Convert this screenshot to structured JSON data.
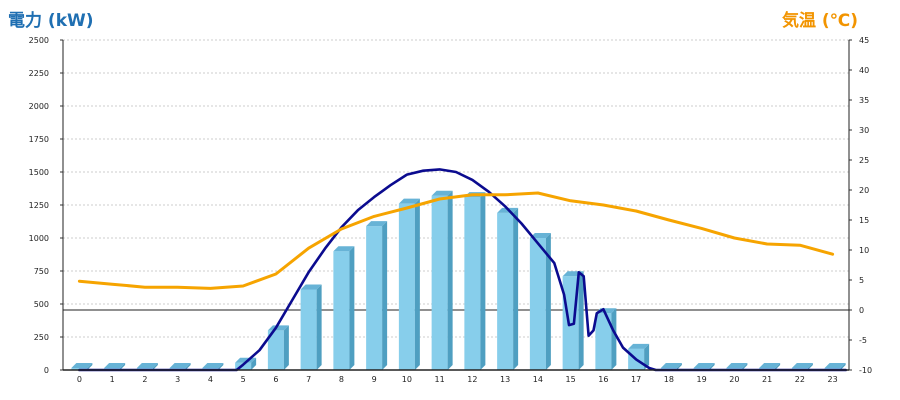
{
  "chart_data": {
    "type": "bar",
    "categories": [
      "0",
      "1",
      "2",
      "3",
      "4",
      "5",
      "6",
      "7",
      "8",
      "9",
      "10",
      "11",
      "12",
      "13",
      "14",
      "15",
      "16",
      "17",
      "18",
      "19",
      "20",
      "21",
      "22",
      "23"
    ],
    "y_left": {
      "label": "電力 (kW)",
      "range": [
        0,
        2500
      ],
      "ticks": [
        "0",
        "250",
        "500",
        "750",
        "1000",
        "1250",
        "1500",
        "1750",
        "2000",
        "2250",
        "2500"
      ]
    },
    "y_right": {
      "label": "気温 (℃)",
      "range": [
        -10,
        45
      ],
      "ticks": [
        "-10",
        "-5",
        "0",
        "5",
        "10",
        "15",
        "20",
        "25",
        "30",
        "35",
        "40",
        "45"
      ]
    },
    "series": [
      {
        "kind": "bar",
        "axis": "left",
        "color": "#87ceeb",
        "values": [
          15,
          15,
          15,
          15,
          15,
          55,
          300,
          610,
          900,
          1090,
          1260,
          1320,
          1310,
          1190,
          1000,
          710,
          430,
          160,
          15,
          15,
          15,
          15,
          15,
          15
        ]
      },
      {
        "kind": "line",
        "axis": "left",
        "color": "#0b0b8f",
        "x": [
          0,
          4.8,
          5,
          5.5,
          6,
          6.5,
          7,
          7.5,
          8,
          8.5,
          9,
          9.5,
          10,
          10.5,
          11,
          11.5,
          12,
          12.5,
          13,
          13.5,
          14,
          14.5,
          14.8,
          14.95,
          15.1,
          15.25,
          15.4,
          15.55,
          15.7,
          15.8,
          16,
          16.3,
          16.6,
          17,
          17.4,
          17.6,
          18,
          23.4
        ],
        "values": [
          0,
          0,
          40,
          150,
          320,
          530,
          740,
          920,
          1080,
          1210,
          1310,
          1400,
          1480,
          1510,
          1520,
          1500,
          1440,
          1350,
          1240,
          1110,
          960,
          810,
          570,
          340,
          350,
          740,
          710,
          260,
          300,
          430,
          460,
          300,
          170,
          80,
          15,
          0,
          0,
          0
        ]
      },
      {
        "kind": "line",
        "axis": "right",
        "color": "#f6a400",
        "x": [
          0,
          1,
          2,
          3,
          4,
          5,
          6,
          7,
          8,
          9,
          10,
          11,
          12,
          13,
          14,
          15,
          16,
          17,
          18,
          19,
          20,
          21,
          22,
          23
        ],
        "values": [
          4.8,
          4.3,
          3.8,
          3.8,
          3.6,
          4.0,
          6.0,
          10.3,
          13.5,
          15.6,
          17.0,
          18.5,
          19.2,
          19.2,
          19.5,
          18.2,
          17.5,
          16.5,
          15.0,
          13.6,
          12.0,
          11.0,
          10.8,
          9.3
        ]
      }
    ],
    "grid": true,
    "zero_line_right_axis": true
  }
}
